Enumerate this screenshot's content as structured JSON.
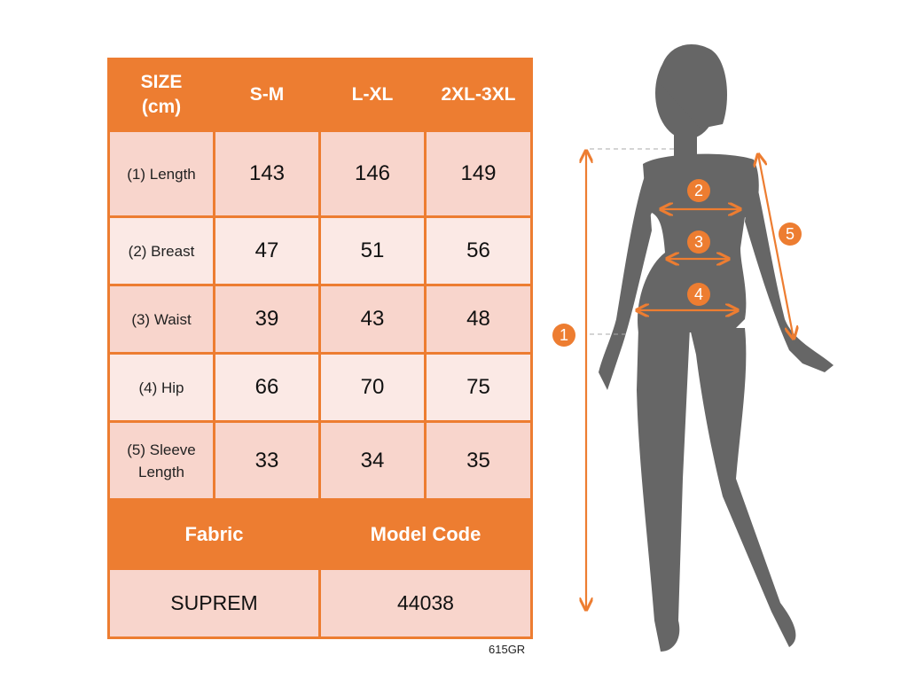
{
  "table": {
    "header": [
      "SIZE (cm)",
      "S-M",
      "L-XL",
      "2XL-3XL"
    ],
    "header_line1": "SIZE",
    "header_line2": "(cm)",
    "rows": [
      {
        "label": "(1) Length",
        "values": [
          "143",
          "146",
          "149"
        ]
      },
      {
        "label": "(2) Breast",
        "values": [
          "47",
          "51",
          "56"
        ]
      },
      {
        "label": "(3) Waist",
        "values": [
          "39",
          "43",
          "48"
        ]
      },
      {
        "label": "(4) Hip",
        "values": [
          "66",
          "70",
          "75"
        ]
      },
      {
        "label": "(5) Sleeve Length",
        "label_line1": "(5) Sleeve",
        "label_line2": "Length",
        "values": [
          "33",
          "34",
          "35"
        ]
      }
    ],
    "footer_headers": [
      "Fabric",
      "Model Code"
    ],
    "footer_values": [
      "SUPREM",
      "44038"
    ]
  },
  "product_code": "615GR",
  "figure": {
    "markers": [
      "1",
      "2",
      "3",
      "4",
      "5"
    ]
  },
  "colors": {
    "accent": "#ed7d31",
    "row_dark": "#f8d5cc",
    "row_light": "#fbe9e5",
    "silhouette": "#666666"
  }
}
